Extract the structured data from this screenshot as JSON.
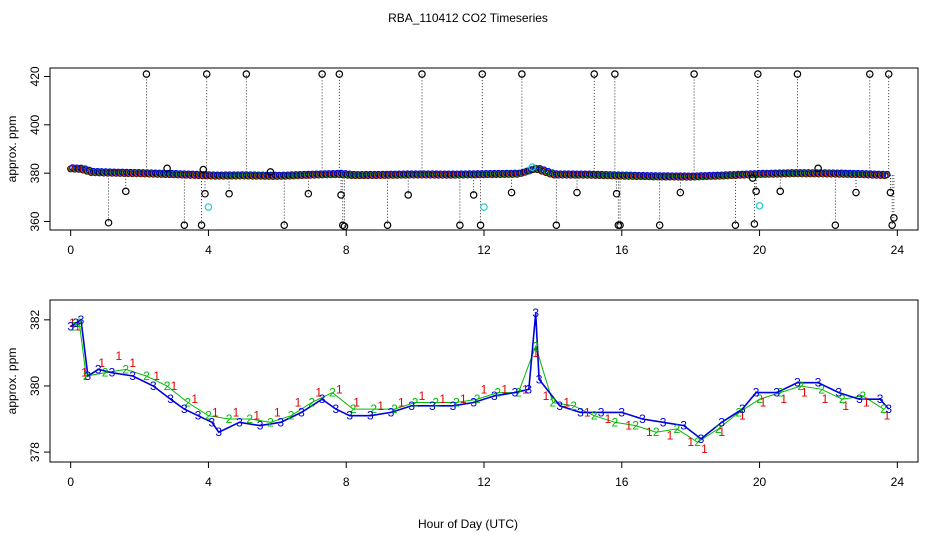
{
  "title": "RBA_110412  CO2 Timeseries",
  "xlabel": "Hour of Day (UTC)",
  "colors": {
    "black": "#000000",
    "red": "#dd0000",
    "green": "#00bb00",
    "blue": "#0000dd",
    "cyan": "#22cccc"
  },
  "chart_data": [
    {
      "type": "scatter",
      "panel": "top",
      "ylabel": "approx. ppm",
      "xlim": [
        -0.6,
        24.6
      ],
      "ylim": [
        356.5,
        423.5
      ],
      "xticks": [
        "0",
        "4",
        "8",
        "12",
        "16",
        "20",
        "24"
      ],
      "yticks": [
        "360",
        "380",
        "400",
        "420"
      ],
      "baseline_series": [
        {
          "x": 0.0,
          "y": 382.0
        },
        {
          "x": 0.3,
          "y": 381.8
        },
        {
          "x": 0.6,
          "y": 380.5
        },
        {
          "x": 1.0,
          "y": 380.3
        },
        {
          "x": 2.0,
          "y": 380.0
        },
        {
          "x": 3.0,
          "y": 379.6
        },
        {
          "x": 3.8,
          "y": 379.2
        },
        {
          "x": 4.2,
          "y": 379.0
        },
        {
          "x": 5.0,
          "y": 379.1
        },
        {
          "x": 6.0,
          "y": 378.9
        },
        {
          "x": 7.0,
          "y": 379.4
        },
        {
          "x": 7.8,
          "y": 379.7
        },
        {
          "x": 8.2,
          "y": 379.2
        },
        {
          "x": 9.0,
          "y": 379.3
        },
        {
          "x": 10.0,
          "y": 379.5
        },
        {
          "x": 11.0,
          "y": 379.4
        },
        {
          "x": 12.0,
          "y": 379.6
        },
        {
          "x": 13.0,
          "y": 379.8
        },
        {
          "x": 13.5,
          "y": 382.0
        },
        {
          "x": 14.0,
          "y": 379.5
        },
        {
          "x": 15.0,
          "y": 379.4
        },
        {
          "x": 16.0,
          "y": 379.0
        },
        {
          "x": 17.0,
          "y": 378.7
        },
        {
          "x": 18.0,
          "y": 378.6
        },
        {
          "x": 19.0,
          "y": 379.1
        },
        {
          "x": 20.0,
          "y": 379.7
        },
        {
          "x": 21.0,
          "y": 380.0
        },
        {
          "x": 22.0,
          "y": 379.9
        },
        {
          "x": 23.0,
          "y": 379.6
        },
        {
          "x": 23.7,
          "y": 379.2
        }
      ],
      "outliers_black": [
        {
          "x": 1.1,
          "y": 359.5
        },
        {
          "x": 2.2,
          "y": 421
        },
        {
          "x": 1.6,
          "y": 372.5
        },
        {
          "x": 2.8,
          "y": 382
        },
        {
          "x": 3.3,
          "y": 358.5
        },
        {
          "x": 3.8,
          "y": 358.5
        },
        {
          "x": 3.85,
          "y": 381.5
        },
        {
          "x": 3.9,
          "y": 371.5
        },
        {
          "x": 3.95,
          "y": 421
        },
        {
          "x": 4.6,
          "y": 371.5
        },
        {
          "x": 5.1,
          "y": 421
        },
        {
          "x": 5.8,
          "y": 380.5
        },
        {
          "x": 6.2,
          "y": 358.5
        },
        {
          "x": 6.9,
          "y": 371.5
        },
        {
          "x": 7.3,
          "y": 421
        },
        {
          "x": 7.8,
          "y": 421
        },
        {
          "x": 7.85,
          "y": 371
        },
        {
          "x": 7.9,
          "y": 358.5
        },
        {
          "x": 7.95,
          "y": 358
        },
        {
          "x": 9.2,
          "y": 358.5
        },
        {
          "x": 9.8,
          "y": 371
        },
        {
          "x": 10.2,
          "y": 421
        },
        {
          "x": 11.3,
          "y": 358.5
        },
        {
          "x": 11.7,
          "y": 371
        },
        {
          "x": 11.9,
          "y": 358.5
        },
        {
          "x": 11.95,
          "y": 421
        },
        {
          "x": 12.8,
          "y": 372
        },
        {
          "x": 13.1,
          "y": 421
        },
        {
          "x": 14.1,
          "y": 358.5
        },
        {
          "x": 14.7,
          "y": 372
        },
        {
          "x": 15.2,
          "y": 421
        },
        {
          "x": 15.8,
          "y": 421
        },
        {
          "x": 15.85,
          "y": 371.5
        },
        {
          "x": 15.9,
          "y": 358.5
        },
        {
          "x": 15.95,
          "y": 358.5
        },
        {
          "x": 17.1,
          "y": 358.5
        },
        {
          "x": 17.7,
          "y": 372
        },
        {
          "x": 18.1,
          "y": 421
        },
        {
          "x": 19.3,
          "y": 358.5
        },
        {
          "x": 19.8,
          "y": 378
        },
        {
          "x": 19.85,
          "y": 359
        },
        {
          "x": 19.9,
          "y": 372.5
        },
        {
          "x": 19.95,
          "y": 421
        },
        {
          "x": 20.6,
          "y": 372.5
        },
        {
          "x": 21.1,
          "y": 421
        },
        {
          "x": 21.7,
          "y": 382
        },
        {
          "x": 22.2,
          "y": 358.5
        },
        {
          "x": 22.8,
          "y": 372
        },
        {
          "x": 23.2,
          "y": 421
        },
        {
          "x": 23.75,
          "y": 421
        },
        {
          "x": 23.8,
          "y": 372
        },
        {
          "x": 23.85,
          "y": 358.5
        },
        {
          "x": 23.9,
          "y": 361.5
        }
      ],
      "outliers_cyan": [
        {
          "x": 4.0,
          "y": 366
        },
        {
          "x": 12.0,
          "y": 366
        },
        {
          "x": 13.4,
          "y": 382.5
        },
        {
          "x": 20.0,
          "y": 366.5
        }
      ]
    },
    {
      "type": "scatter",
      "panel": "bottom",
      "ylabel": "approx. ppm",
      "xlim": [
        -0.6,
        24.6
      ],
      "ylim": [
        377.7,
        382.6
      ],
      "xticks": [
        "0",
        "4",
        "8",
        "12",
        "16",
        "20",
        "24"
      ],
      "yticks": [
        "378",
        "380",
        "382"
      ],
      "series": [
        {
          "name": "1",
          "symbol": "1",
          "points": [
            {
              "x": 0.05,
              "y": 381.9
            },
            {
              "x": 0.2,
              "y": 381.8
            },
            {
              "x": 0.4,
              "y": 380.4
            },
            {
              "x": 0.9,
              "y": 380.7
            },
            {
              "x": 1.4,
              "y": 380.9
            },
            {
              "x": 1.8,
              "y": 380.7
            },
            {
              "x": 2.5,
              "y": 380.3
            },
            {
              "x": 3.0,
              "y": 380.0
            },
            {
              "x": 3.6,
              "y": 379.6
            },
            {
              "x": 4.2,
              "y": 379.2
            },
            {
              "x": 4.8,
              "y": 379.2
            },
            {
              "x": 5.4,
              "y": 379.1
            },
            {
              "x": 6.0,
              "y": 379.2
            },
            {
              "x": 6.6,
              "y": 379.5
            },
            {
              "x": 7.2,
              "y": 379.8
            },
            {
              "x": 7.8,
              "y": 379.9
            },
            {
              "x": 8.3,
              "y": 379.5
            },
            {
              "x": 9.0,
              "y": 379.4
            },
            {
              "x": 9.6,
              "y": 379.5
            },
            {
              "x": 10.2,
              "y": 379.7
            },
            {
              "x": 10.8,
              "y": 379.6
            },
            {
              "x": 11.4,
              "y": 379.6
            },
            {
              "x": 12.0,
              "y": 379.9
            },
            {
              "x": 12.6,
              "y": 379.9
            },
            {
              "x": 13.2,
              "y": 379.9
            },
            {
              "x": 13.5,
              "y": 381.0
            },
            {
              "x": 13.8,
              "y": 379.7
            },
            {
              "x": 14.4,
              "y": 379.5
            },
            {
              "x": 15.0,
              "y": 379.2
            },
            {
              "x": 15.6,
              "y": 379.0
            },
            {
              "x": 16.2,
              "y": 378.8
            },
            {
              "x": 16.8,
              "y": 378.6
            },
            {
              "x": 17.4,
              "y": 378.5
            },
            {
              "x": 18.0,
              "y": 378.3
            },
            {
              "x": 18.4,
              "y": 378.1
            },
            {
              "x": 18.9,
              "y": 378.6
            },
            {
              "x": 19.5,
              "y": 379.1
            },
            {
              "x": 20.1,
              "y": 379.5
            },
            {
              "x": 20.7,
              "y": 379.6
            },
            {
              "x": 21.3,
              "y": 379.8
            },
            {
              "x": 21.9,
              "y": 379.6
            },
            {
              "x": 22.5,
              "y": 379.4
            },
            {
              "x": 23.1,
              "y": 379.5
            },
            {
              "x": 23.7,
              "y": 379.1
            }
          ]
        },
        {
          "name": "2",
          "symbol": "2",
          "points": [
            {
              "x": 0.1,
              "y": 381.8
            },
            {
              "x": 0.25,
              "y": 381.9
            },
            {
              "x": 0.45,
              "y": 380.3
            },
            {
              "x": 1.0,
              "y": 380.4
            },
            {
              "x": 1.6,
              "y": 380.5
            },
            {
              "x": 2.2,
              "y": 380.3
            },
            {
              "x": 2.8,
              "y": 380.0
            },
            {
              "x": 3.4,
              "y": 379.5
            },
            {
              "x": 4.0,
              "y": 379.1
            },
            {
              "x": 4.6,
              "y": 379.0
            },
            {
              "x": 5.2,
              "y": 379.0
            },
            {
              "x": 5.8,
              "y": 378.9
            },
            {
              "x": 6.4,
              "y": 379.1
            },
            {
              "x": 7.0,
              "y": 379.5
            },
            {
              "x": 7.6,
              "y": 379.8
            },
            {
              "x": 8.2,
              "y": 379.3
            },
            {
              "x": 8.8,
              "y": 379.3
            },
            {
              "x": 9.4,
              "y": 379.3
            },
            {
              "x": 10.0,
              "y": 379.5
            },
            {
              "x": 10.6,
              "y": 379.5
            },
            {
              "x": 11.2,
              "y": 379.5
            },
            {
              "x": 11.8,
              "y": 379.6
            },
            {
              "x": 12.4,
              "y": 379.8
            },
            {
              "x": 13.0,
              "y": 379.8
            },
            {
              "x": 13.5,
              "y": 381.2
            },
            {
              "x": 14.0,
              "y": 379.5
            },
            {
              "x": 14.6,
              "y": 379.4
            },
            {
              "x": 15.2,
              "y": 379.1
            },
            {
              "x": 15.8,
              "y": 378.9
            },
            {
              "x": 16.4,
              "y": 378.8
            },
            {
              "x": 17.0,
              "y": 378.6
            },
            {
              "x": 17.6,
              "y": 378.7
            },
            {
              "x": 18.2,
              "y": 378.3
            },
            {
              "x": 18.8,
              "y": 378.7
            },
            {
              "x": 19.4,
              "y": 379.2
            },
            {
              "x": 20.0,
              "y": 379.6
            },
            {
              "x": 20.6,
              "y": 379.8
            },
            {
              "x": 21.2,
              "y": 380.0
            },
            {
              "x": 21.8,
              "y": 379.9
            },
            {
              "x": 22.4,
              "y": 379.6
            },
            {
              "x": 23.0,
              "y": 379.7
            },
            {
              "x": 23.6,
              "y": 379.3
            }
          ]
        },
        {
          "name": "3",
          "symbol": "3",
          "points": [
            {
              "x": 0.0,
              "y": 381.8
            },
            {
              "x": 0.15,
              "y": 381.9
            },
            {
              "x": 0.3,
              "y": 382.0
            },
            {
              "x": 0.5,
              "y": 380.3
            },
            {
              "x": 0.8,
              "y": 380.5
            },
            {
              "x": 1.2,
              "y": 380.4
            },
            {
              "x": 1.8,
              "y": 380.3
            },
            {
              "x": 2.4,
              "y": 380.0
            },
            {
              "x": 2.9,
              "y": 379.6
            },
            {
              "x": 3.3,
              "y": 379.3
            },
            {
              "x": 3.7,
              "y": 379.1
            },
            {
              "x": 4.1,
              "y": 378.9
            },
            {
              "x": 4.3,
              "y": 378.6
            },
            {
              "x": 4.9,
              "y": 378.9
            },
            {
              "x": 5.5,
              "y": 378.8
            },
            {
              "x": 6.1,
              "y": 378.9
            },
            {
              "x": 6.7,
              "y": 379.2
            },
            {
              "x": 7.3,
              "y": 379.6
            },
            {
              "x": 7.7,
              "y": 379.3
            },
            {
              "x": 8.1,
              "y": 379.1
            },
            {
              "x": 8.7,
              "y": 379.1
            },
            {
              "x": 9.3,
              "y": 379.2
            },
            {
              "x": 9.9,
              "y": 379.4
            },
            {
              "x": 10.5,
              "y": 379.4
            },
            {
              "x": 11.1,
              "y": 379.4
            },
            {
              "x": 11.7,
              "y": 379.5
            },
            {
              "x": 12.3,
              "y": 379.7
            },
            {
              "x": 12.9,
              "y": 379.8
            },
            {
              "x": 13.3,
              "y": 379.9
            },
            {
              "x": 13.5,
              "y": 382.2
            },
            {
              "x": 13.6,
              "y": 380.2
            },
            {
              "x": 14.2,
              "y": 379.4
            },
            {
              "x": 14.8,
              "y": 379.2
            },
            {
              "x": 15.4,
              "y": 379.2
            },
            {
              "x": 16.0,
              "y": 379.2
            },
            {
              "x": 16.6,
              "y": 379.0
            },
            {
              "x": 17.2,
              "y": 378.9
            },
            {
              "x": 17.8,
              "y": 378.8
            },
            {
              "x": 18.3,
              "y": 378.4
            },
            {
              "x": 18.9,
              "y": 378.9
            },
            {
              "x": 19.5,
              "y": 379.3
            },
            {
              "x": 19.9,
              "y": 379.8
            },
            {
              "x": 20.5,
              "y": 379.8
            },
            {
              "x": 21.1,
              "y": 380.1
            },
            {
              "x": 21.7,
              "y": 380.1
            },
            {
              "x": 22.3,
              "y": 379.8
            },
            {
              "x": 22.9,
              "y": 379.6
            },
            {
              "x": 23.5,
              "y": 379.6
            },
            {
              "x": 23.75,
              "y": 379.3
            }
          ]
        }
      ]
    }
  ]
}
